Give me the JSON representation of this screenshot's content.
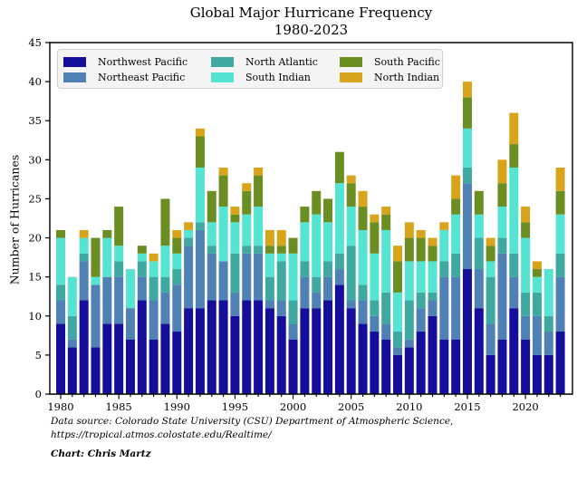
{
  "title": "Global Major Hurricane Frequency",
  "subtitle": "1980-2023",
  "footer": {
    "source_line1": "Data source: Colorado State University (CSU) Department of Atmospheric Science,",
    "source_line2": "https://tropical.atmos.colostate.edu/Realtime/",
    "credit": "Chart: Chris Martz"
  },
  "chart_data": {
    "type": "bar",
    "stacked": true,
    "title": "Global Major Hurricane Frequency",
    "subtitle": "1980-2023",
    "xlabel": "",
    "ylabel": "Number of Hurricanes",
    "ylim": [
      0,
      45
    ],
    "ytick_step": 5,
    "xtick_label_every": 5,
    "grid": false,
    "legend_position": "upper left inside, 3 columns",
    "years": [
      1980,
      1981,
      1982,
      1983,
      1984,
      1985,
      1986,
      1987,
      1988,
      1989,
      1990,
      1991,
      1992,
      1993,
      1994,
      1995,
      1996,
      1997,
      1998,
      1999,
      2000,
      2001,
      2002,
      2003,
      2004,
      2005,
      2006,
      2007,
      2008,
      2009,
      2010,
      2011,
      2012,
      2013,
      2014,
      2015,
      2016,
      2017,
      2018,
      2019,
      2020,
      2021,
      2022,
      2023
    ],
    "series": [
      {
        "name": "Northwest Pacific",
        "color": "#150e9b",
        "values": [
          9,
          6,
          12,
          6,
          9,
          9,
          7,
          12,
          7,
          9,
          8,
          11,
          11,
          12,
          12,
          10,
          12,
          12,
          11,
          10,
          7,
          11,
          11,
          12,
          14,
          11,
          9,
          8,
          7,
          5,
          6,
          8,
          10,
          7,
          7,
          16,
          11,
          5,
          7,
          11,
          7,
          5,
          5,
          8
        ]
      },
      {
        "name": "Northeast Pacific",
        "color": "#4f81b4",
        "values": [
          3,
          1,
          5,
          8,
          6,
          6,
          4,
          3,
          5,
          4,
          6,
          8,
          10,
          6,
          5,
          3,
          6,
          6,
          1,
          2,
          2,
          4,
          2,
          3,
          2,
          1,
          3,
          2,
          2,
          1,
          1,
          3,
          2,
          8,
          8,
          11,
          5,
          4,
          11,
          4,
          3,
          5,
          3,
          7
        ]
      },
      {
        "name": "North Atlantic",
        "color": "#3fa8a0",
        "values": [
          2,
          3,
          1,
          0,
          0,
          2,
          0,
          2,
          3,
          2,
          2,
          1,
          1,
          1,
          0,
          5,
          1,
          1,
          3,
          5,
          3,
          2,
          2,
          2,
          2,
          7,
          2,
          2,
          4,
          2,
          5,
          2,
          1,
          2,
          3,
          2,
          4,
          6,
          2,
          3,
          3,
          3,
          2,
          3
        ]
      },
      {
        "name": "South Indian",
        "color": "#55e3d2",
        "values": [
          6,
          5,
          2,
          1,
          5,
          2,
          5,
          1,
          2,
          4,
          2,
          1,
          7,
          3,
          7,
          4,
          4,
          5,
          3,
          1,
          6,
          5,
          8,
          5,
          9,
          5,
          7,
          6,
          8,
          5,
          5,
          4,
          4,
          4,
          5,
          5,
          3,
          2,
          4,
          11,
          7,
          2,
          6,
          5
        ]
      },
      {
        "name": "South Pacific",
        "color": "#6b8e23",
        "values": [
          1,
          0,
          0,
          5,
          1,
          5,
          0,
          1,
          0,
          6,
          2,
          0,
          4,
          4,
          4,
          1,
          3,
          4,
          1,
          1,
          2,
          2,
          3,
          3,
          4,
          3,
          3,
          4,
          2,
          4,
          3,
          3,
          2,
          0,
          2,
          4,
          3,
          2,
          3,
          3,
          2,
          1,
          0,
          3
        ]
      },
      {
        "name": "North Indian",
        "color": "#d8a41c",
        "values": [
          0,
          0,
          1,
          0,
          0,
          0,
          0,
          0,
          1,
          0,
          1,
          1,
          1,
          0,
          1,
          1,
          1,
          1,
          2,
          2,
          0,
          0,
          0,
          0,
          0,
          1,
          2,
          1,
          1,
          2,
          2,
          1,
          1,
          1,
          3,
          2,
          0,
          1,
          3,
          4,
          2,
          1,
          0,
          3
        ]
      }
    ],
    "totals": [
      21,
      15,
      21,
      20,
      21,
      24,
      16,
      19,
      18,
      25,
      21,
      22,
      34,
      26,
      29,
      24,
      27,
      29,
      21,
      21,
      20,
      24,
      26,
      25,
      31,
      28,
      26,
      23,
      24,
      19,
      22,
      21,
      20,
      22,
      28,
      40,
      26,
      20,
      30,
      36,
      24,
      17,
      16,
      29
    ]
  }
}
